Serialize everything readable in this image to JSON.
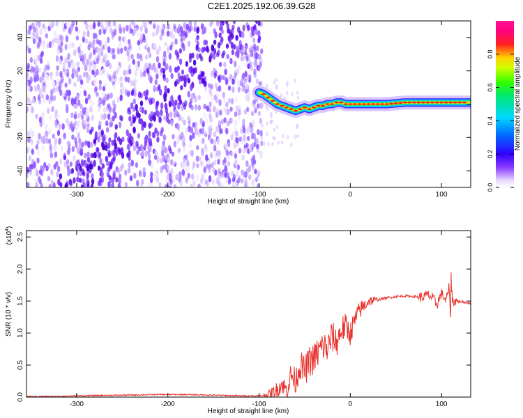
{
  "title": "C2E1.2025.192.06.39.G28",
  "chart_data": [
    {
      "type": "heatmap",
      "xlabel": "Height of straight line (km)",
      "ylabel": "Frequency (Hz)",
      "xlim": [
        -355,
        132
      ],
      "ylim": [
        -50,
        50
      ],
      "x_ticks": [
        -300,
        -200,
        -100,
        0,
        100
      ],
      "y_ticks": [
        -40,
        -20,
        0,
        20,
        40
      ],
      "x_tick_labels": [
        "-300",
        "-200",
        "-100",
        "0",
        "100"
      ],
      "y_tick_labels": [
        "-40",
        "-20",
        "0",
        "20",
        "40"
      ],
      "colorbar": {
        "label": "Normalized spectral amplitude",
        "range": [
          0,
          1
        ],
        "ticks": [
          0.0,
          0.2,
          0.4,
          0.6,
          0.8
        ],
        "tick_labels": [
          "0.0",
          "0.2",
          "0.4",
          "0.6",
          "0.8"
        ],
        "colormap": "rainbow (white-violet-blue-cyan-green-yellow-red-magenta)"
      },
      "signal_ridge": {
        "x": [
          -100,
          -95,
          -90,
          -85,
          -80,
          -75,
          -70,
          -65,
          -60,
          -55,
          -50,
          -45,
          -40,
          -35,
          -30,
          -25,
          -20,
          -15,
          -10,
          -5,
          0,
          20,
          40,
          60,
          80,
          100,
          120,
          132
        ],
        "frequency": [
          7,
          6,
          4,
          2,
          0,
          -1,
          -2,
          -3,
          -4,
          -3,
          -2,
          -3,
          -2,
          -1,
          -1,
          0,
          0,
          1,
          1,
          0,
          0,
          0,
          0,
          1,
          1,
          1,
          1,
          1
        ]
      },
      "noise_region_x": [
        -355,
        -97
      ]
    },
    {
      "type": "line",
      "xlabel": "Height of straight line (km)",
      "ylabel": "SNR (10 * v/v)",
      "y_multiplier_label": "(x10",
      "y_multiplier_exp": "4",
      "y_multiplier_close": ")",
      "xlim": [
        -355,
        132
      ],
      "ylim": [
        0,
        2.6
      ],
      "x_ticks": [
        -300,
        -200,
        -100,
        0,
        100
      ],
      "y_ticks": [
        0.0,
        0.5,
        1.0,
        1.5,
        2.0,
        2.5
      ],
      "x_tick_labels": [
        "-300",
        "-200",
        "-100",
        "0",
        "100"
      ],
      "y_tick_labels": [
        "0.0",
        "0.5",
        "1.0",
        "1.5",
        "2.0",
        "2.5"
      ],
      "series": [
        {
          "color": "#e8302a",
          "x": [
            -355,
            -330,
            -300,
            -250,
            -210,
            -180,
            -150,
            -120,
            -100,
            -90,
            -80,
            -75,
            -70,
            -65,
            -60,
            -55,
            -50,
            -45,
            -40,
            -35,
            -30,
            -25,
            -20,
            -15,
            -10,
            -5,
            0,
            5,
            10,
            20,
            30,
            40,
            50,
            60,
            70,
            80,
            85,
            90,
            95,
            100,
            105,
            108,
            110,
            112,
            115,
            120,
            125,
            132
          ],
          "y": [
            0.01,
            0.01,
            0.02,
            0.03,
            0.04,
            0.04,
            0.03,
            0.02,
            0.02,
            0.03,
            0.12,
            0.2,
            0.1,
            0.35,
            0.25,
            0.5,
            0.4,
            0.55,
            0.6,
            0.7,
            0.8,
            0.75,
            0.95,
            0.85,
            1.05,
            1.1,
            1.0,
            1.2,
            1.35,
            1.5,
            1.52,
            1.55,
            1.57,
            1.58,
            1.57,
            1.56,
            1.6,
            1.55,
            1.45,
            1.62,
            1.5,
            1.7,
            1.3,
            1.5,
            1.5,
            1.49,
            1.48,
            1.47
          ]
        }
      ]
    }
  ]
}
